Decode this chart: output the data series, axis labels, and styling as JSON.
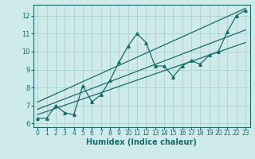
{
  "xlabel": "Humidex (Indice chaleur)",
  "bg_color": "#ceeaea",
  "grid_color": "#aed4d4",
  "line_color": "#1a6b6b",
  "xlim": [
    -0.5,
    23.5
  ],
  "ylim": [
    5.8,
    12.6
  ],
  "x_ticks": [
    0,
    1,
    2,
    3,
    4,
    5,
    6,
    7,
    8,
    9,
    10,
    11,
    12,
    13,
    14,
    15,
    16,
    17,
    18,
    19,
    20,
    21,
    22,
    23
  ],
  "y_ticks": [
    6,
    7,
    8,
    9,
    10,
    11,
    12
  ],
  "zigzag_x": [
    0,
    1,
    2,
    3,
    4,
    5,
    6,
    7,
    8,
    9,
    10,
    11,
    12,
    13,
    14,
    15,
    16,
    17,
    18,
    19,
    20,
    21,
    22,
    23
  ],
  "zigzag_y": [
    6.3,
    6.3,
    7.0,
    6.6,
    6.5,
    8.1,
    7.2,
    7.6,
    8.4,
    9.4,
    10.3,
    11.0,
    10.5,
    9.2,
    9.2,
    8.6,
    9.2,
    9.5,
    9.3,
    9.8,
    10.0,
    11.1,
    12.0,
    12.3
  ],
  "line1_x": [
    0,
    23
  ],
  "line1_y": [
    6.5,
    10.5
  ],
  "line2_x": [
    0,
    23
  ],
  "line2_y": [
    6.8,
    11.2
  ],
  "line3_x": [
    0,
    23
  ],
  "line3_y": [
    7.2,
    12.4
  ],
  "tick_fontsize": 5.5,
  "xlabel_fontsize": 7
}
